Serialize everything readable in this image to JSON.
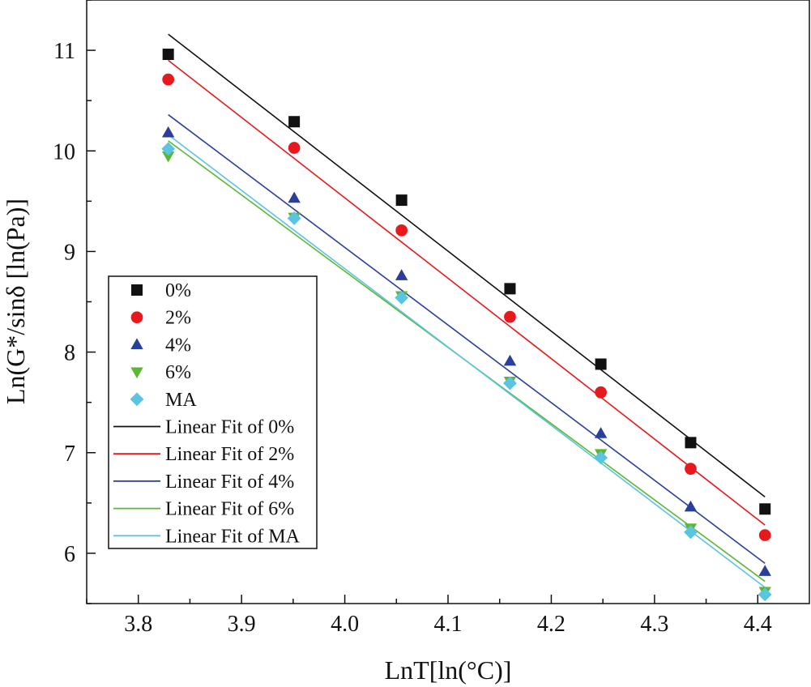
{
  "chart_data": {
    "type": "scatter",
    "xlabel": "LnT[ln(°C)]",
    "ylabel": "Ln(G*/sinδ [ln(Pa)]",
    "xlim": [
      3.75,
      4.45
    ],
    "ylim": [
      5.5,
      11.5
    ],
    "x_ticks": [
      "3.8",
      "3.9",
      "4.0",
      "4.1",
      "4.2",
      "4.3",
      "4.4"
    ],
    "y_ticks": [
      "6",
      "7",
      "8",
      "9",
      "10",
      "11"
    ],
    "grid": false,
    "legend_position": "left",
    "x": [
      3.829,
      3.951,
      4.055,
      4.16,
      4.248,
      4.335,
      4.407
    ],
    "series": [
      {
        "name": "0%",
        "marker": "square",
        "color": "#111111",
        "values": [
          10.96,
          10.29,
          9.51,
          8.63,
          7.88,
          7.1,
          6.44
        ]
      },
      {
        "name": "2%",
        "marker": "circle",
        "color": "#e8191c",
        "values": [
          10.71,
          10.03,
          9.21,
          8.35,
          7.6,
          6.84,
          6.18
        ]
      },
      {
        "name": "4%",
        "marker": "triangle-up",
        "color": "#2a3f9a",
        "values": [
          10.18,
          9.53,
          8.76,
          7.91,
          7.19,
          6.46,
          5.82
        ]
      },
      {
        "name": "6%",
        "marker": "triangle-down",
        "color": "#5cb832",
        "values": [
          9.95,
          9.34,
          8.56,
          7.71,
          6.99,
          6.25,
          5.62
        ]
      },
      {
        "name": "MA",
        "marker": "diamond",
        "color": "#5bc4e0",
        "values": [
          10.02,
          9.33,
          8.54,
          7.69,
          6.95,
          6.21,
          5.59
        ]
      }
    ],
    "fits": [
      {
        "name": "Linear Fit of 0%",
        "color": "#111111",
        "x": [
          3.829,
          4.407
        ],
        "y": [
          11.16,
          6.56
        ]
      },
      {
        "name": "Linear Fit of 2%",
        "color": "#e8191c",
        "x": [
          3.829,
          4.407
        ],
        "y": [
          10.9,
          6.28
        ]
      },
      {
        "name": "Linear Fit of 4%",
        "color": "#2a3f9a",
        "x": [
          3.829,
          4.407
        ],
        "y": [
          10.36,
          5.9
        ]
      },
      {
        "name": "Linear Fit of 6%",
        "color": "#5cb832",
        "x": [
          3.829,
          4.407
        ],
        "y": [
          10.1,
          5.72
        ]
      },
      {
        "name": "Linear Fit of MA",
        "color": "#5bc4e0",
        "x": [
          3.829,
          4.407
        ],
        "y": [
          10.16,
          5.66
        ]
      }
    ]
  }
}
